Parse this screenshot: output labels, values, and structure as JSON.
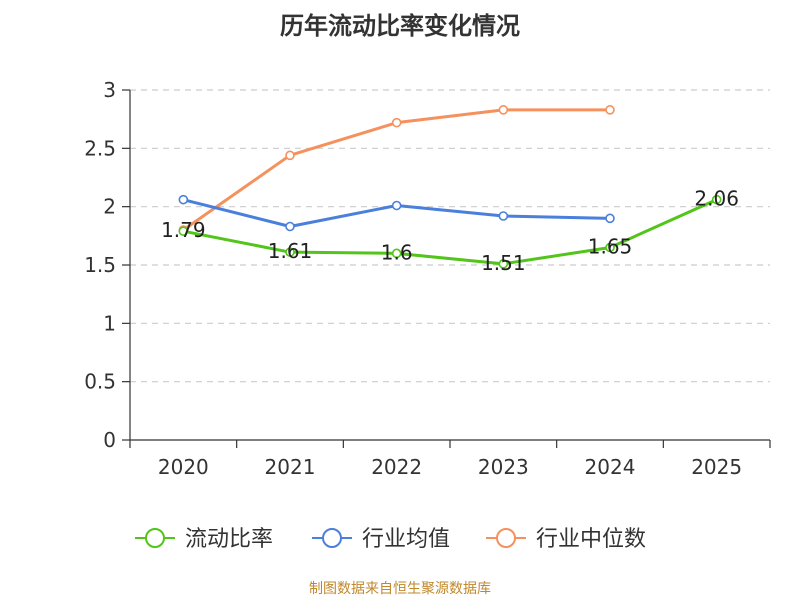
{
  "chart_data": {
    "type": "line",
    "title": "历年流动比率变化情况",
    "categories": [
      "2020",
      "2021",
      "2022",
      "2023",
      "2024",
      "2025"
    ],
    "ylim": [
      0,
      3
    ],
    "yticks": [
      "0",
      "0.5",
      "1",
      "1.5",
      "2",
      "2.5",
      "3"
    ],
    "grid": true,
    "legend_position": "bottom",
    "series": [
      {
        "name": "流动比率",
        "color": "#52c41a",
        "values": [
          1.79,
          1.61,
          1.6,
          1.51,
          1.65,
          2.06
        ],
        "labels": [
          "1.79",
          "1.61",
          "1.6",
          "1.51",
          "1.65",
          "2.06"
        ]
      },
      {
        "name": "行业均值",
        "color": "#4a7fdc",
        "values": [
          2.06,
          1.83,
          2.01,
          1.92,
          1.9,
          null
        ]
      },
      {
        "name": "行业中位数",
        "color": "#f5915c",
        "values": [
          1.8,
          2.44,
          2.72,
          2.83,
          2.83,
          null
        ]
      }
    ]
  },
  "source": "制图数据来自恒生聚源数据库"
}
